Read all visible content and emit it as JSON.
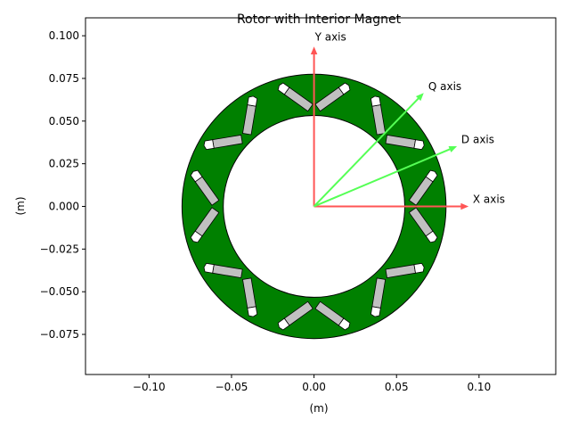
{
  "chart_data": {
    "type": "diagram",
    "title": "Rotor with Interior Magnet",
    "xlabel": "(m)",
    "ylabel": "(m)",
    "xlim": [
      -0.1385,
      0.1465
    ],
    "ylim": [
      -0.0985,
      0.1105
    ],
    "xticks": [
      {
        "v": -0.1,
        "label": "−0.10"
      },
      {
        "v": -0.05,
        "label": "−0.05"
      },
      {
        "v": 0.0,
        "label": "0.00"
      },
      {
        "v": 0.05,
        "label": "0.05"
      },
      {
        "v": 0.1,
        "label": "0.10"
      }
    ],
    "yticks": [
      {
        "v": 0.1,
        "label": "0.100"
      },
      {
        "v": 0.075,
        "label": "0.075"
      },
      {
        "v": 0.05,
        "label": "0.050"
      },
      {
        "v": 0.025,
        "label": "0.025"
      },
      {
        "v": 0.0,
        "label": "0.000"
      },
      {
        "v": -0.025,
        "label": "−0.025"
      },
      {
        "v": -0.05,
        "label": "−0.050"
      },
      {
        "v": -0.075,
        "label": "−0.075"
      }
    ],
    "rotor": {
      "outer_radius": 0.08,
      "inner_radius": 0.055,
      "color": "#008000",
      "poles": 8,
      "magnet_color": "#c0c0c0"
    },
    "axes_arrows": [
      {
        "name": "X axis",
        "dx": 0.093,
        "dy": 0.0,
        "color": "#ff5555"
      },
      {
        "name": "Y axis",
        "dx": 0.0,
        "dy": 0.093,
        "color": "#ff5555"
      },
      {
        "name": "D axis",
        "dx": 0.086,
        "dy": 0.035,
        "color": "#55ff55"
      },
      {
        "name": "Q axis",
        "dx": 0.066,
        "dy": 0.066,
        "color": "#55ff55"
      }
    ]
  }
}
